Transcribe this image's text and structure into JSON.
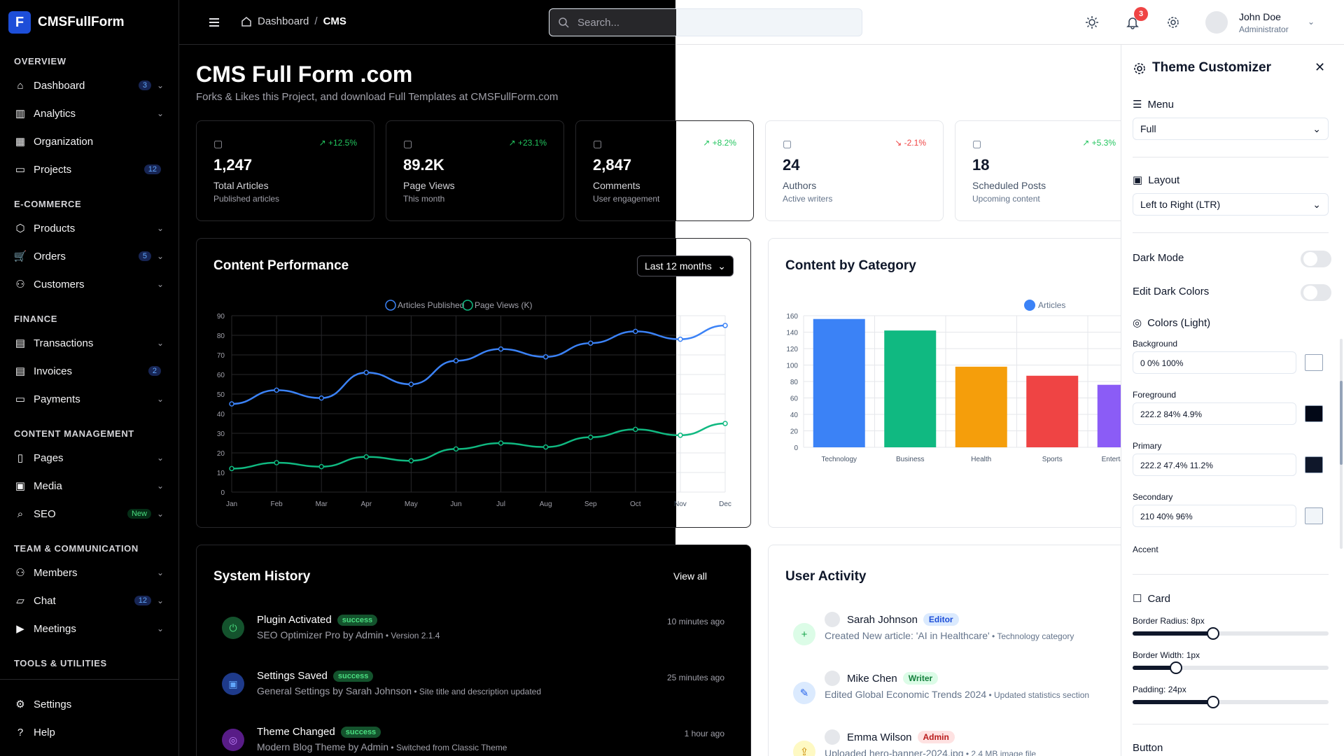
{
  "app": {
    "name": "CMSFullForm",
    "logo_letter": "F"
  },
  "sidebar": {
    "sections": [
      "OVERVIEW",
      "E-COMMERCE",
      "FINANCE",
      "CONTENT MANAGEMENT",
      "TEAM & COMMUNICATION",
      "TOOLS & UTILITIES"
    ],
    "items": [
      {
        "label": "Dashboard",
        "icon": "home-icon",
        "badge": "3",
        "chevron": true
      },
      {
        "label": "Analytics",
        "icon": "bar-chart-icon",
        "badge": "",
        "chevron": true
      },
      {
        "label": "Organization",
        "icon": "building-icon",
        "badge": "",
        "chevron": false
      },
      {
        "label": "Projects",
        "icon": "folder-icon",
        "badge": "12",
        "chevron": false
      },
      {
        "label": "Products",
        "icon": "package-icon",
        "badge": "",
        "chevron": true
      },
      {
        "label": "Orders",
        "icon": "cart-icon",
        "badge": "5",
        "chevron": true
      },
      {
        "label": "Customers",
        "icon": "users-icon",
        "badge": "",
        "chevron": true
      },
      {
        "label": "Transactions",
        "icon": "wallet-icon",
        "badge": "",
        "chevron": true
      },
      {
        "label": "Invoices",
        "icon": "receipt-icon",
        "badge": "2",
        "chevron": false
      },
      {
        "label": "Payments",
        "icon": "credit-card-icon",
        "badge": "",
        "chevron": true
      },
      {
        "label": "Pages",
        "icon": "file-icon",
        "badge": "",
        "chevron": true
      },
      {
        "label": "Media",
        "icon": "image-icon",
        "badge": "",
        "chevron": true
      },
      {
        "label": "SEO",
        "icon": "search-icon",
        "badge": "New",
        "chevron": true
      },
      {
        "label": "Members",
        "icon": "user-group-icon",
        "badge": "",
        "chevron": true
      },
      {
        "label": "Chat",
        "icon": "chat-icon",
        "badge": "12",
        "chevron": true
      },
      {
        "label": "Meetings",
        "icon": "video-icon",
        "badge": "",
        "chevron": true
      },
      {
        "label": "Settings",
        "icon": "gear-icon",
        "badge": "",
        "chevron": false
      },
      {
        "label": "Help",
        "icon": "help-icon",
        "badge": "",
        "chevron": false
      }
    ]
  },
  "header": {
    "breadcrumb": [
      "Dashboard",
      "CMS"
    ],
    "search_placeholder": "Search...",
    "notification_count": "3",
    "user": {
      "name": "John Doe",
      "role": "Administrator"
    }
  },
  "page": {
    "title": "CMS Full Form .com",
    "subtitle": "Forks & Likes this Project, and download Full Templates at CMSFullForm.com"
  },
  "stats": [
    {
      "value": "1,247",
      "label": "Total Articles",
      "sub": "Published articles",
      "change": "+12.5%",
      "trend": "up",
      "icon": "document-icon"
    },
    {
      "value": "89.2K",
      "label": "Page Views",
      "sub": "This month",
      "change": "+23.1%",
      "trend": "up",
      "icon": "eye-icon"
    },
    {
      "value": "2,847",
      "label": "Comments",
      "sub": "User engagement",
      "change": "+8.2%",
      "trend": "up",
      "icon": "comment-icon"
    },
    {
      "value": "24",
      "label": "Authors",
      "sub": "Active writers",
      "change": "-2.1%",
      "trend": "down",
      "icon": "users-icon"
    },
    {
      "value": "18",
      "label": "Scheduled Posts",
      "sub": "Upcoming content",
      "change": "+5.3%",
      "trend": "up",
      "icon": "calendar-icon"
    }
  ],
  "chart_data": [
    {
      "type": "line",
      "title": "Content Performance",
      "period_select": "Last 12 months",
      "categories": [
        "Jan",
        "Feb",
        "Mar",
        "Apr",
        "May",
        "Jun",
        "Jul",
        "Aug",
        "Sep",
        "Oct",
        "Nov",
        "Dec"
      ],
      "series": [
        {
          "name": "Articles Published",
          "color": "#3b82f6",
          "values": [
            45,
            52,
            48,
            61,
            55,
            67,
            73,
            69,
            76,
            82,
            78,
            85
          ]
        },
        {
          "name": "Page Views (K)",
          "color": "#10b981",
          "values": [
            12,
            15,
            13,
            18,
            16,
            22,
            25,
            23,
            28,
            32,
            29,
            35
          ]
        }
      ],
      "ylim": [
        0,
        90
      ],
      "yticks": [
        0,
        10,
        20,
        30,
        40,
        50,
        60,
        70,
        80,
        90
      ],
      "legend": "top-center",
      "grid": true
    },
    {
      "type": "bar",
      "title": "Content by Category",
      "categories": [
        "Technology",
        "Business",
        "Health",
        "Sports",
        "Entertainment"
      ],
      "series": [
        {
          "name": "Articles",
          "color": "#3b82f6",
          "values": [
            156,
            142,
            98,
            87,
            76
          ]
        }
      ],
      "bar_colors": [
        "#3b82f6",
        "#10b981",
        "#f59e0b",
        "#ef4444",
        "#8b5cf6"
      ],
      "ylim": [
        0,
        160
      ],
      "yticks": [
        0,
        20,
        40,
        60,
        80,
        100,
        120,
        140,
        160
      ],
      "legend": "top-center",
      "grid": true
    }
  ],
  "history": {
    "title": "System History",
    "view_all": "View all",
    "items": [
      {
        "title": "Plugin Activated",
        "status": "success",
        "desc": "SEO Optimizer Pro by Admin",
        "detail": "Version 2.1.4",
        "time": "10 minutes ago",
        "icon": "plug-icon"
      },
      {
        "title": "Settings Saved",
        "status": "success",
        "desc": "General Settings by Sarah Johnson",
        "detail": "Site title and description updated",
        "time": "25 minutes ago",
        "icon": "save-icon"
      },
      {
        "title": "Theme Changed",
        "status": "success",
        "desc": "Modern Blog Theme by Admin",
        "detail": "Switched from Classic Theme",
        "time": "1 hour ago",
        "icon": "palette-icon"
      }
    ]
  },
  "activity": {
    "title": "User Activity",
    "items": [
      {
        "name": "Sarah Johnson",
        "role": "Editor",
        "desc": "Created New article: 'AI in Healthcare'",
        "detail": "Technology category",
        "icon": "plus-icon"
      },
      {
        "name": "Mike Chen",
        "role": "Writer",
        "desc": "Edited Global Economic Trends 2024",
        "detail": "Updated statistics section",
        "icon": "edit-icon"
      },
      {
        "name": "Emma Wilson",
        "role": "Admin",
        "desc": "Uploaded hero-banner-2024.jpg",
        "detail": "2.4 MB image file",
        "icon": "upload-icon"
      }
    ]
  },
  "customizer": {
    "title": "Theme Customizer",
    "menu_label": "Menu",
    "menu_value": "Full",
    "layout_label": "Layout",
    "layout_value": "Left to Right (LTR)",
    "dark_mode": "Dark Mode",
    "edit_dark": "Edit Dark Colors",
    "colors_label": "Colors (Light)",
    "colors": [
      {
        "name": "Background",
        "value": "0 0% 100%",
        "swatch": "#ffffff"
      },
      {
        "name": "Foreground",
        "value": "222.2 84% 4.9%",
        "swatch": "#020817"
      },
      {
        "name": "Primary",
        "value": "222.2 47.4% 11.2%",
        "swatch": "#0f172a"
      },
      {
        "name": "Secondary",
        "value": "210 40% 96%",
        "swatch": "#f1f5f9"
      }
    ],
    "accent_label": "Accent",
    "card_label": "Card",
    "sliders": [
      {
        "label": "Border Radius: 8px",
        "fraction": 0.41
      },
      {
        "label": "Border Width: 1px",
        "fraction": 0.22
      },
      {
        "label": "Padding: 24px",
        "fraction": 0.41
      }
    ],
    "button_label": "Button"
  }
}
